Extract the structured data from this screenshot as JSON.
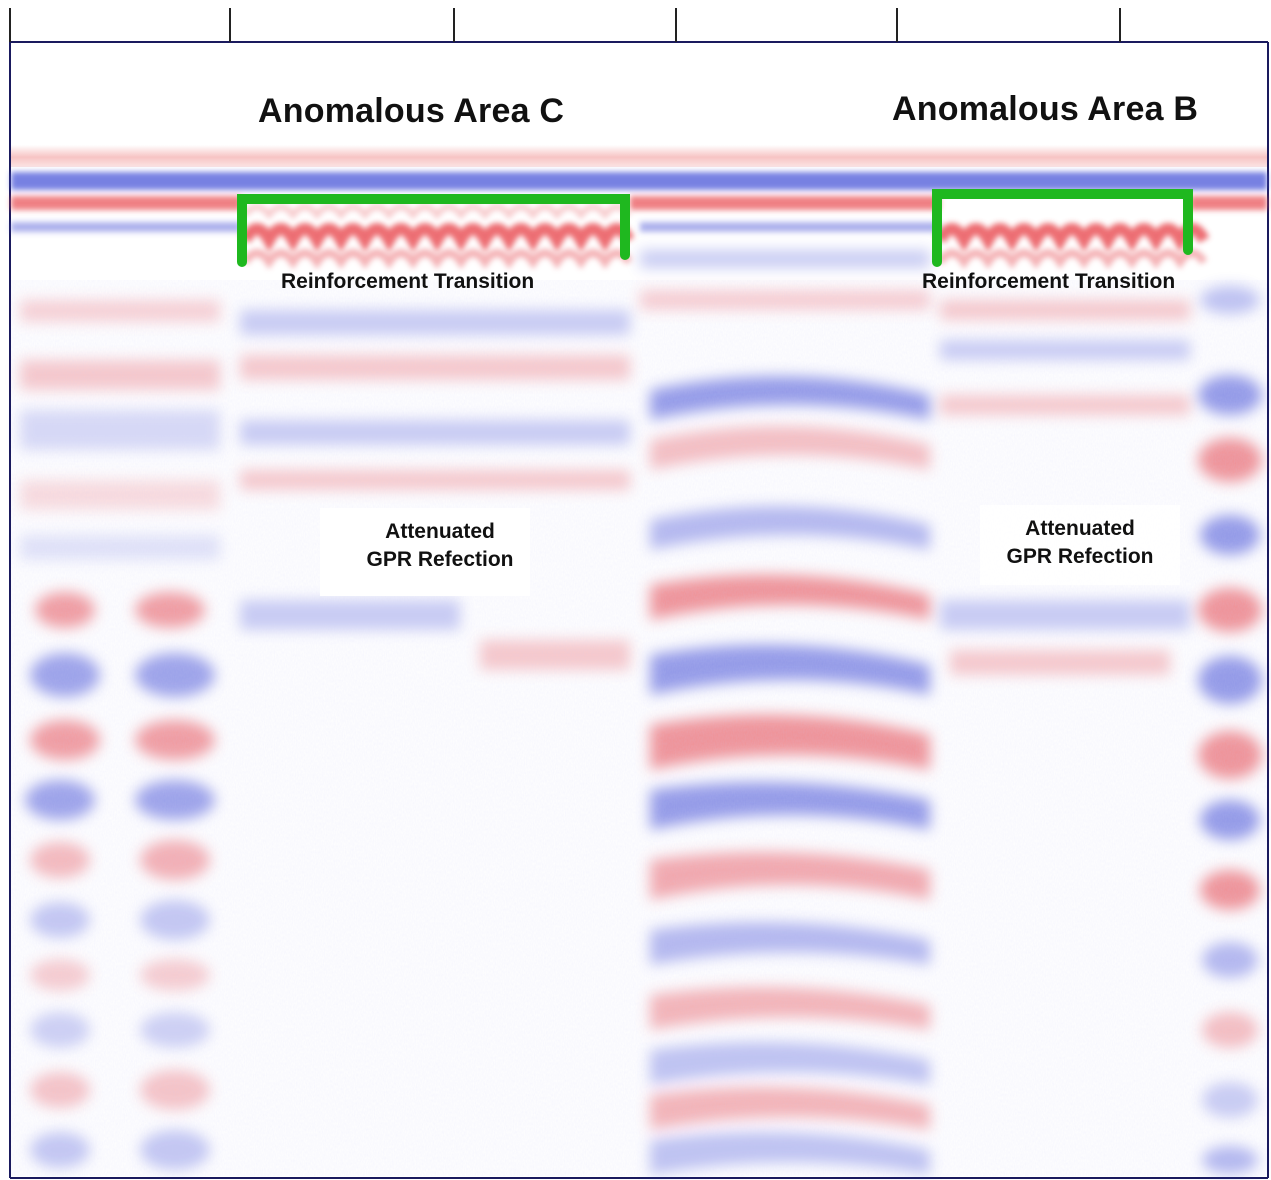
{
  "labels": {
    "area_c": "Anomalous Area C",
    "area_b": "Anomalous Area B",
    "transition_c": "Reinforcement Transition",
    "transition_b": "Reinforcement Transition",
    "attenuated_c_line1": "Attenuated",
    "attenuated_c_line2": "GPR Refection",
    "attenuated_b_line1": "Attenuated",
    "attenuated_b_line2": "GPR Refection"
  },
  "colors": {
    "positive_amplitude": "#e8484f",
    "negative_amplitude": "#4a55d8",
    "bracket": "#1fb81f",
    "axis": "#1a1a5e"
  }
}
